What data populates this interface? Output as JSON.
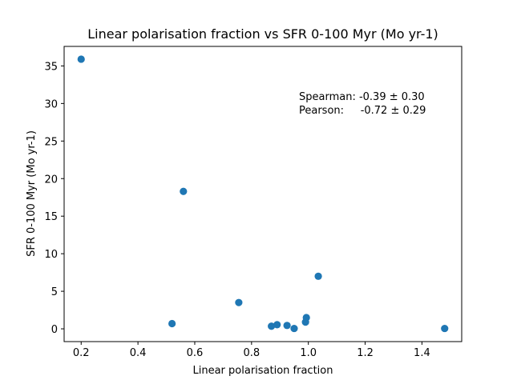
{
  "chart_data": {
    "type": "scatter",
    "title": "Linear polarisation fraction vs SFR 0-100 Myr (Mo yr-1)",
    "xlabel": "Linear polarisation fraction",
    "ylabel": "SFR 0-100 Myr (Mo yr-1)",
    "xlim": [
      0.14,
      1.54
    ],
    "ylim": [
      -1.7,
      37.6
    ],
    "xticks": [
      0.2,
      0.4,
      0.6,
      0.8,
      1.0,
      1.2,
      1.4
    ],
    "xtick_labels": [
      "0.2",
      "0.4",
      "0.6",
      "0.8",
      "1.0",
      "1.2",
      "1.4"
    ],
    "yticks": [
      0,
      5,
      10,
      15,
      20,
      25,
      30,
      35
    ],
    "ytick_labels": [
      "0",
      "5",
      "10",
      "15",
      "20",
      "25",
      "30",
      "35"
    ],
    "grid": false,
    "marker_color": "#1f77b4",
    "points": [
      {
        "x": 0.2,
        "y": 35.9
      },
      {
        "x": 0.56,
        "y": 18.3
      },
      {
        "x": 0.52,
        "y": 0.7
      },
      {
        "x": 0.755,
        "y": 3.5
      },
      {
        "x": 0.87,
        "y": 0.35
      },
      {
        "x": 0.89,
        "y": 0.55
      },
      {
        "x": 0.925,
        "y": 0.45
      },
      {
        "x": 0.95,
        "y": 0.05
      },
      {
        "x": 0.99,
        "y": 0.9
      },
      {
        "x": 0.993,
        "y": 1.5
      },
      {
        "x": 1.035,
        "y": 7.0
      },
      {
        "x": 1.48,
        "y": 0.05
      }
    ],
    "annotations": [
      {
        "text": "Spearman: -0.39 ± 0.30"
      },
      {
        "text": "Pearson:     -0.72 ± 0.29"
      }
    ]
  }
}
